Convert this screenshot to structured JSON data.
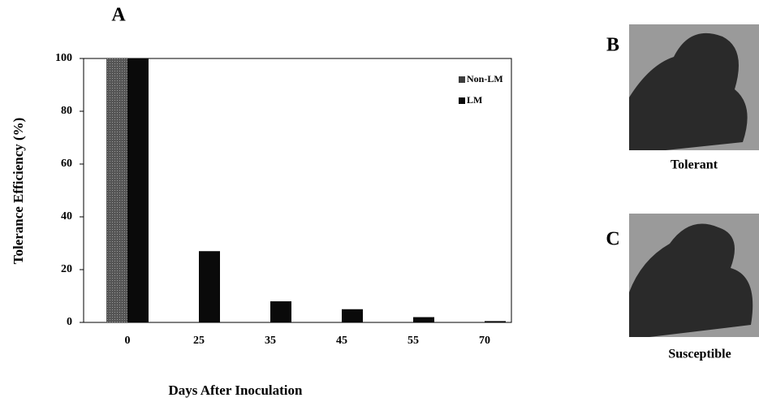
{
  "chart_data": {
    "type": "bar",
    "panel_label": "A",
    "x_label": "Days After Inoculation",
    "y_label": "Tolerance Efficiency (%)",
    "categories": [
      "0",
      "25",
      "35",
      "45",
      "55",
      "70"
    ],
    "series": [
      {
        "name": "Non-LM",
        "color": "#3c3c3c",
        "values": [
          100,
          0,
          0,
          0,
          0,
          0
        ]
      },
      {
        "name": "LM",
        "color": "#0a0a0a",
        "values": [
          100,
          27,
          8,
          5,
          2,
          0.5
        ]
      }
    ],
    "ylim": [
      0,
      100
    ],
    "yticks": [
      0,
      20,
      40,
      60,
      80,
      100
    ],
    "grid": false,
    "legend": "top-right"
  },
  "panels": [
    {
      "letter": "B",
      "caption": "Tolerant"
    },
    {
      "letter": "C",
      "caption": "Susceptible"
    }
  ]
}
